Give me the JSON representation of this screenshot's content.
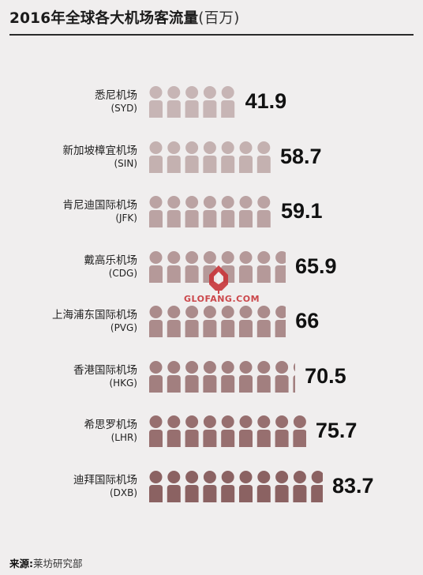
{
  "title": "2016年全球各大机场客流量",
  "title_unit": "(百万)",
  "source_label": "来源:",
  "source_text": "莱坊研究部",
  "watermark": "GLOFANG.COM",
  "chart_data": {
    "type": "bar",
    "title": "2016年全球各大机场客流量(百万)",
    "categories": [
      {
        "name": "悉尼机场",
        "code": "(SYD)"
      },
      {
        "name": "新加坡樟宜机场",
        "code": "(SIN)"
      },
      {
        "name": "肯尼迪国际机场",
        "code": "(JFK)"
      },
      {
        "name": "戴高乐机场",
        "code": "(CDG)"
      },
      {
        "name": "上海浦东国际机场",
        "code": "(PVG)"
      },
      {
        "name": "香港国际机场",
        "code": "(HKG)"
      },
      {
        "name": "希思罗机场",
        "code": "(LHR)"
      },
      {
        "name": "迪拜国际机场",
        "code": "(DXB)"
      }
    ],
    "values": [
      41.9,
      58.7,
      59.1,
      65.9,
      66,
      70.5,
      75.7,
      83.7
    ],
    "labels": [
      "41.9",
      "58.7",
      "59.1",
      "65.9",
      "66",
      "70.5",
      "75.7",
      "83.7"
    ],
    "colors": [
      "#c7b5b5",
      "#c4b1b0",
      "#bba3a3",
      "#b59999",
      "#ab8b8b",
      "#a27f7f",
      "#976f6f",
      "#8b6262"
    ],
    "xlabel": "",
    "ylabel": "",
    "legend": "none"
  }
}
